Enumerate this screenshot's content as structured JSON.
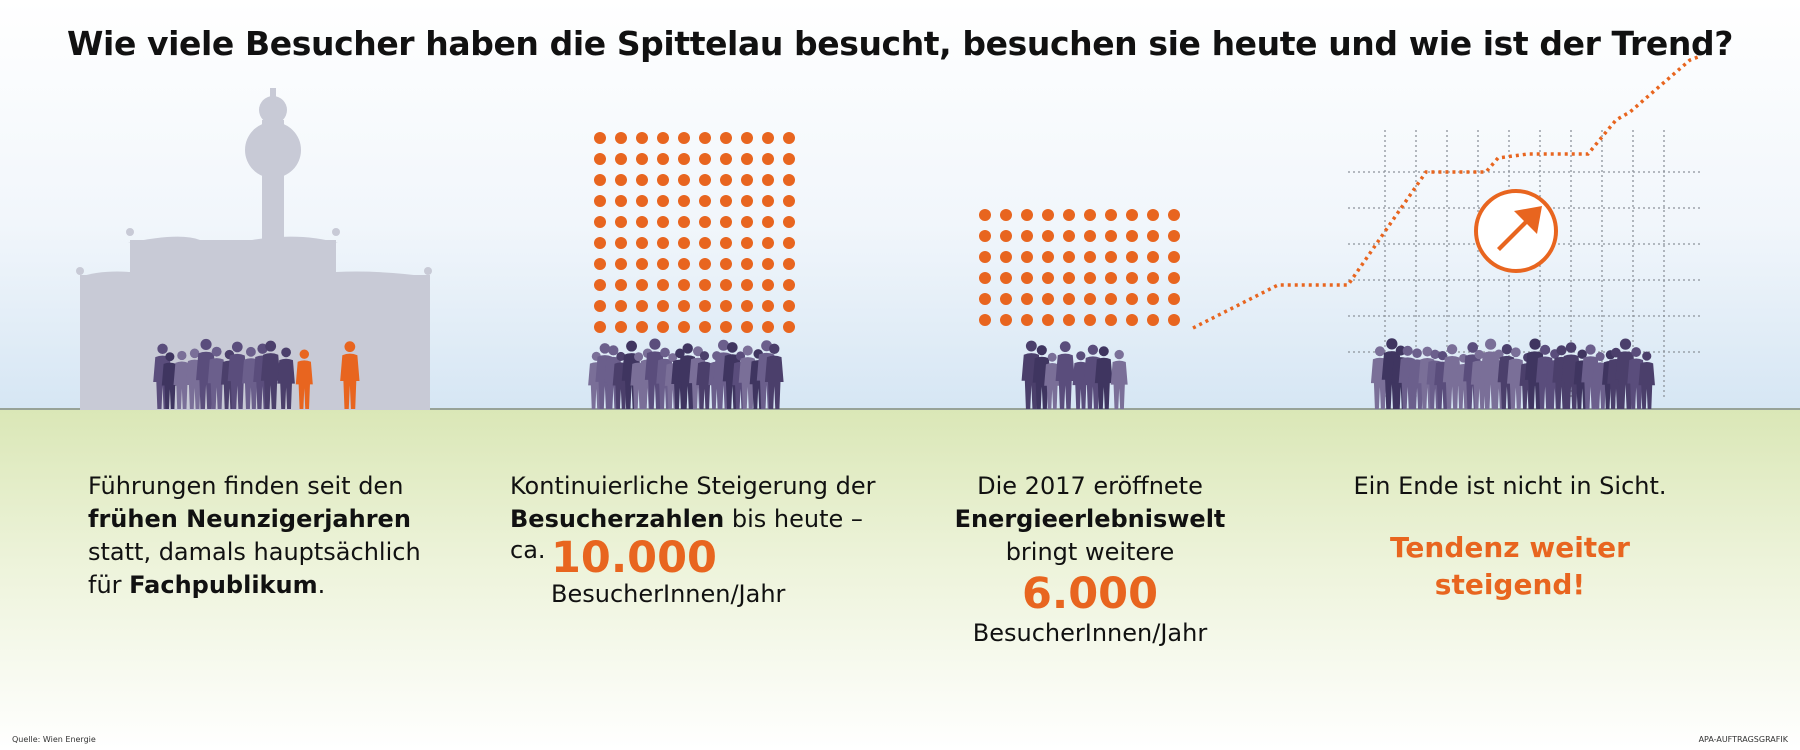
{
  "title": "Wie viele Besucher haben die Spittelau besucht, besuchen sie heute und wie ist der Trend?",
  "colors": {
    "accent": "#e8651f",
    "crowd": "#5a4d7c",
    "building": "#c8cad6",
    "ground": "#dfe9bf",
    "sky": "#dbe8f4"
  },
  "panels": [
    {
      "l1": "Führungen finden seit den",
      "l2": "frühen Neunzigerjahren",
      "l3": "statt, damals hauptsächlich",
      "l4a": "für ",
      "l4b": "Fachpublikum",
      "l4c": "."
    },
    {
      "l1": "Kontinuierliche Steigerung der",
      "l2a": "Besucherzahlen",
      "l2b": " bis heute –",
      "l3a": "ca.",
      "number": "10.000",
      "unit": "BesucherInnen/Jahr"
    },
    {
      "l1": "Die 2017 eröffnete",
      "l2": "Energieerlebniswelt",
      "l3": "bringt weitere",
      "number": "6.000",
      "unit": "BesucherInnen/Jahr"
    },
    {
      "l1": "Ein Ende ist nicht in Sicht.",
      "accent1": "Tendenz weiter",
      "accent2": "steigend!"
    }
  ],
  "footer": {
    "source": "Quelle: Wien Energie",
    "credit": "APA-AUFTRAGSGRAFIK"
  },
  "icons": [
    "building-silhouette",
    "dot-grid",
    "crowd-silhouette",
    "trend-chart",
    "arrow-up-right-icon"
  ]
}
